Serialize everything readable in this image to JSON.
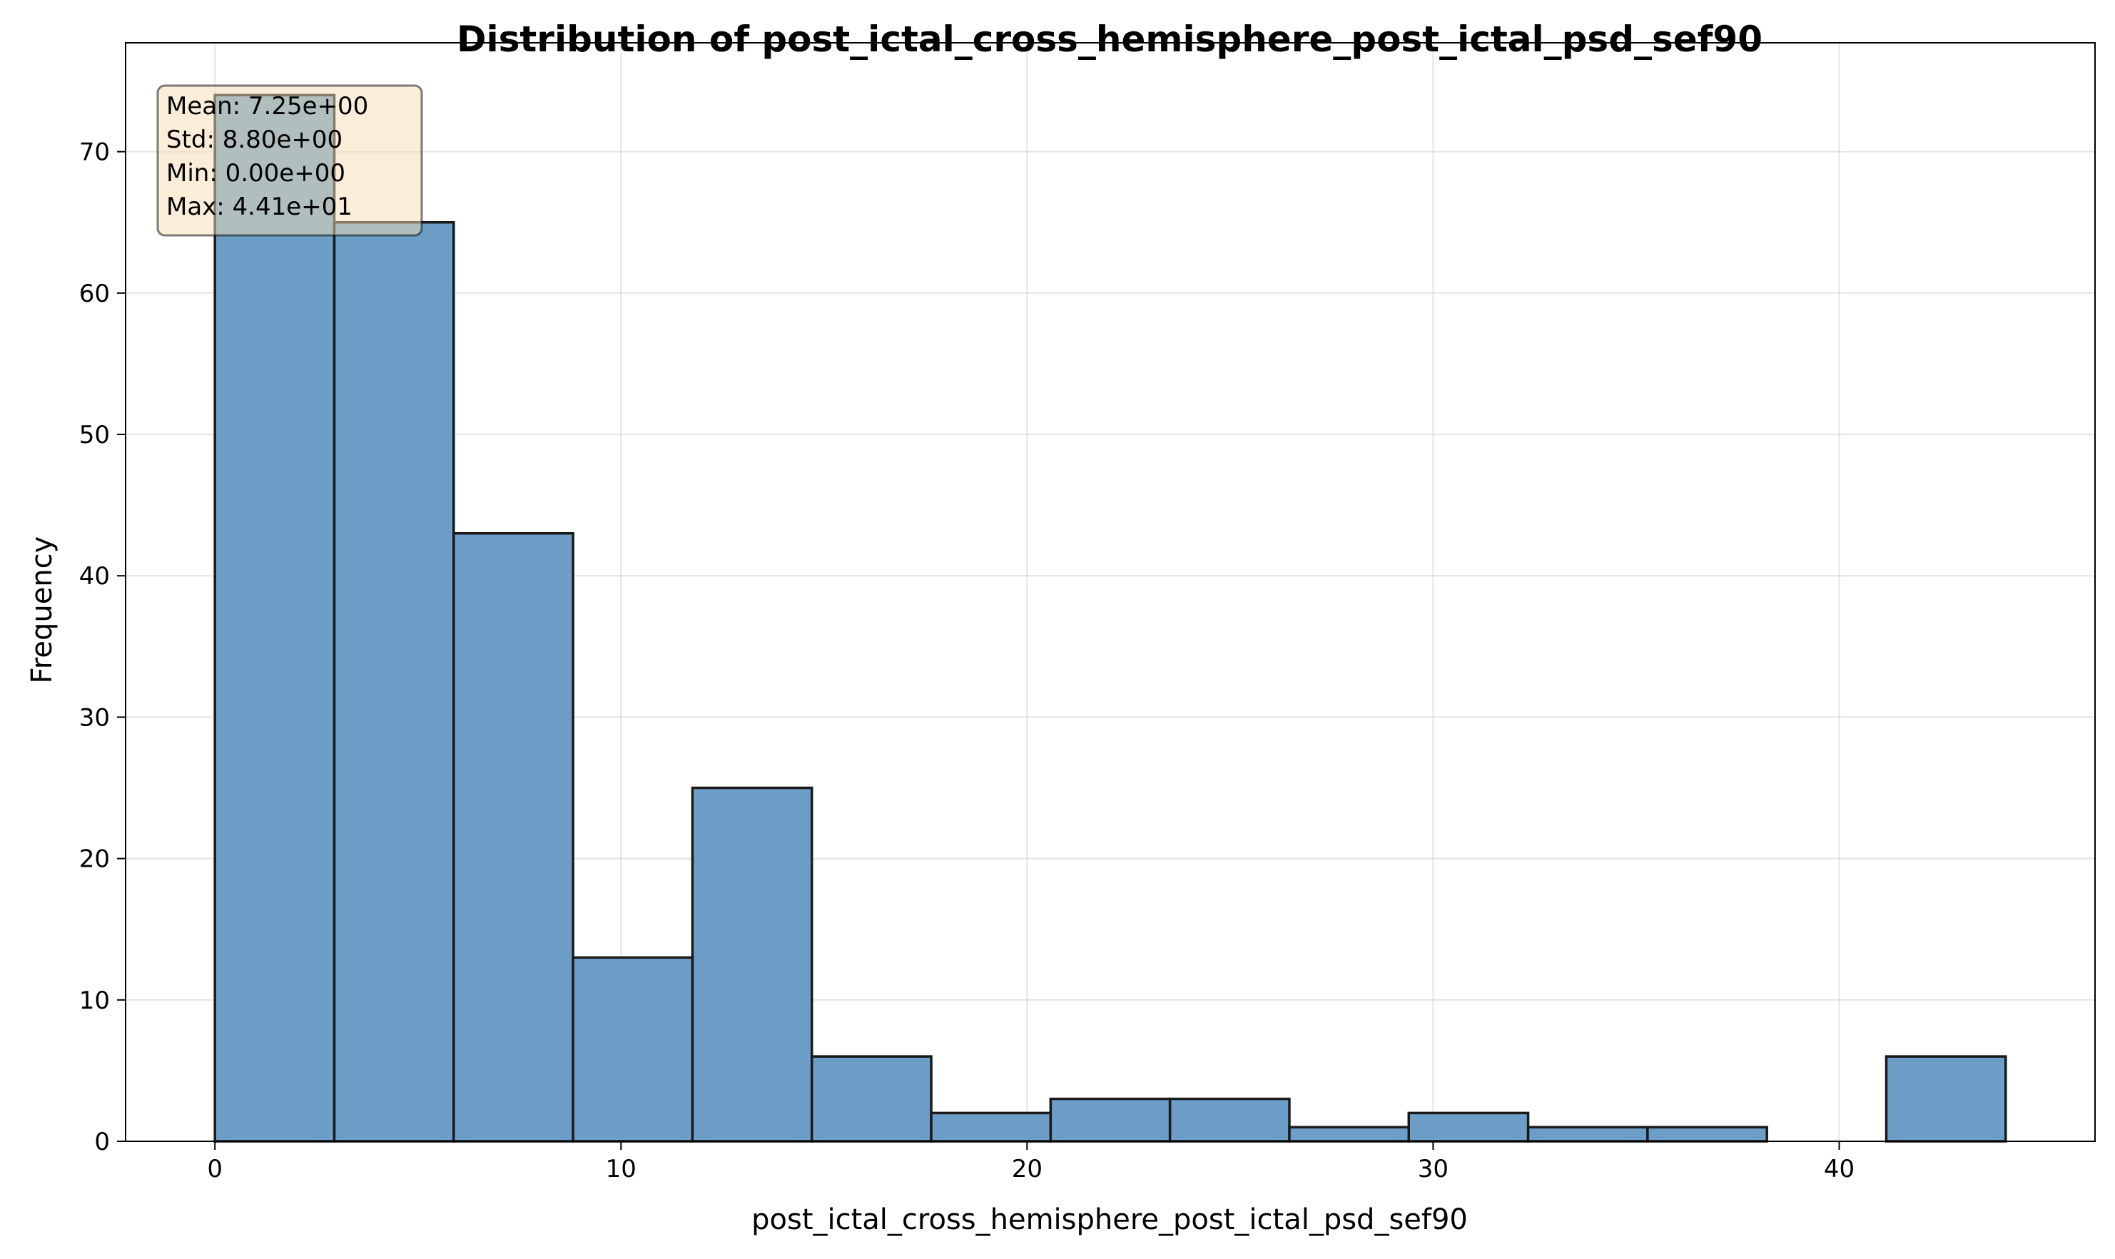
{
  "chart_data": {
    "type": "bar",
    "title": "Distribution of post_ictal_cross_hemisphere_post_ictal_psd_sef90",
    "xlabel": "post_ictal_cross_hemisphere_post_ictal_psd_sef90",
    "ylabel": "Frequency",
    "xlim": [
      -2.2,
      46.3
    ],
    "ylim": [
      0,
      77.7
    ],
    "xticks": [
      0,
      10,
      20,
      30,
      40
    ],
    "yticks": [
      0,
      10,
      20,
      30,
      40,
      50,
      60,
      70
    ],
    "bin_edges": [
      0,
      2.94,
      5.88,
      8.82,
      11.76,
      14.7,
      17.64,
      20.58,
      23.52,
      26.46,
      29.4,
      32.34,
      35.28,
      38.22,
      41.16,
      44.1
    ],
    "values": [
      74,
      65,
      43,
      13,
      25,
      6,
      2,
      3,
      3,
      1,
      2,
      1,
      1,
      0,
      6
    ],
    "grid": true,
    "bar_color": "#6d9ec8",
    "stats_box": {
      "lines": [
        "Mean: 7.25e+00",
        "Std: 8.80e+00",
        "Min: 0.00e+00",
        "Max: 4.41e+01"
      ],
      "placement": "top-left",
      "background": "#f5deb3"
    }
  }
}
